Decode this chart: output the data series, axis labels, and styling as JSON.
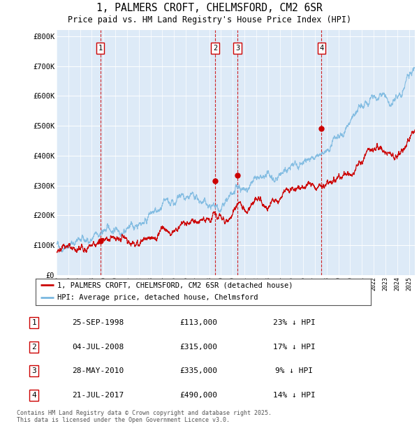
{
  "title_line1": "1, PALMERS CROFT, CHELMSFORD, CM2 6SR",
  "title_line2": "Price paid vs. HM Land Registry's House Price Index (HPI)",
  "ylim": [
    0,
    820000
  ],
  "yticks": [
    0,
    100000,
    200000,
    300000,
    400000,
    500000,
    600000,
    700000,
    800000
  ],
  "ytick_labels": [
    "£0",
    "£100K",
    "£200K",
    "£300K",
    "£400K",
    "£500K",
    "£600K",
    "£700K",
    "£800K"
  ],
  "bg_color": "#ddeaf7",
  "hpi_color": "#7ab8e0",
  "price_color": "#cc0000",
  "vline_color": "#cc0000",
  "sale_dates_num": [
    1998.73,
    2008.5,
    2010.41,
    2017.55
  ],
  "sale_prices": [
    113000,
    315000,
    335000,
    490000
  ],
  "sale_labels": [
    "1",
    "2",
    "3",
    "4"
  ],
  "legend_label_price": "1, PALMERS CROFT, CHELMSFORD, CM2 6SR (detached house)",
  "legend_label_hpi": "HPI: Average price, detached house, Chelmsford",
  "table_rows": [
    [
      "1",
      "25-SEP-1998",
      "£113,000",
      "23% ↓ HPI"
    ],
    [
      "2",
      "04-JUL-2008",
      "£315,000",
      "17% ↓ HPI"
    ],
    [
      "3",
      "28-MAY-2010",
      "£335,000",
      "9% ↓ HPI"
    ],
    [
      "4",
      "21-JUL-2017",
      "£490,000",
      "14% ↓ HPI"
    ]
  ],
  "footer": "Contains HM Land Registry data © Crown copyright and database right 2025.\nThis data is licensed under the Open Government Licence v3.0.",
  "xlim_start": 1995.0,
  "xlim_end": 2025.5
}
